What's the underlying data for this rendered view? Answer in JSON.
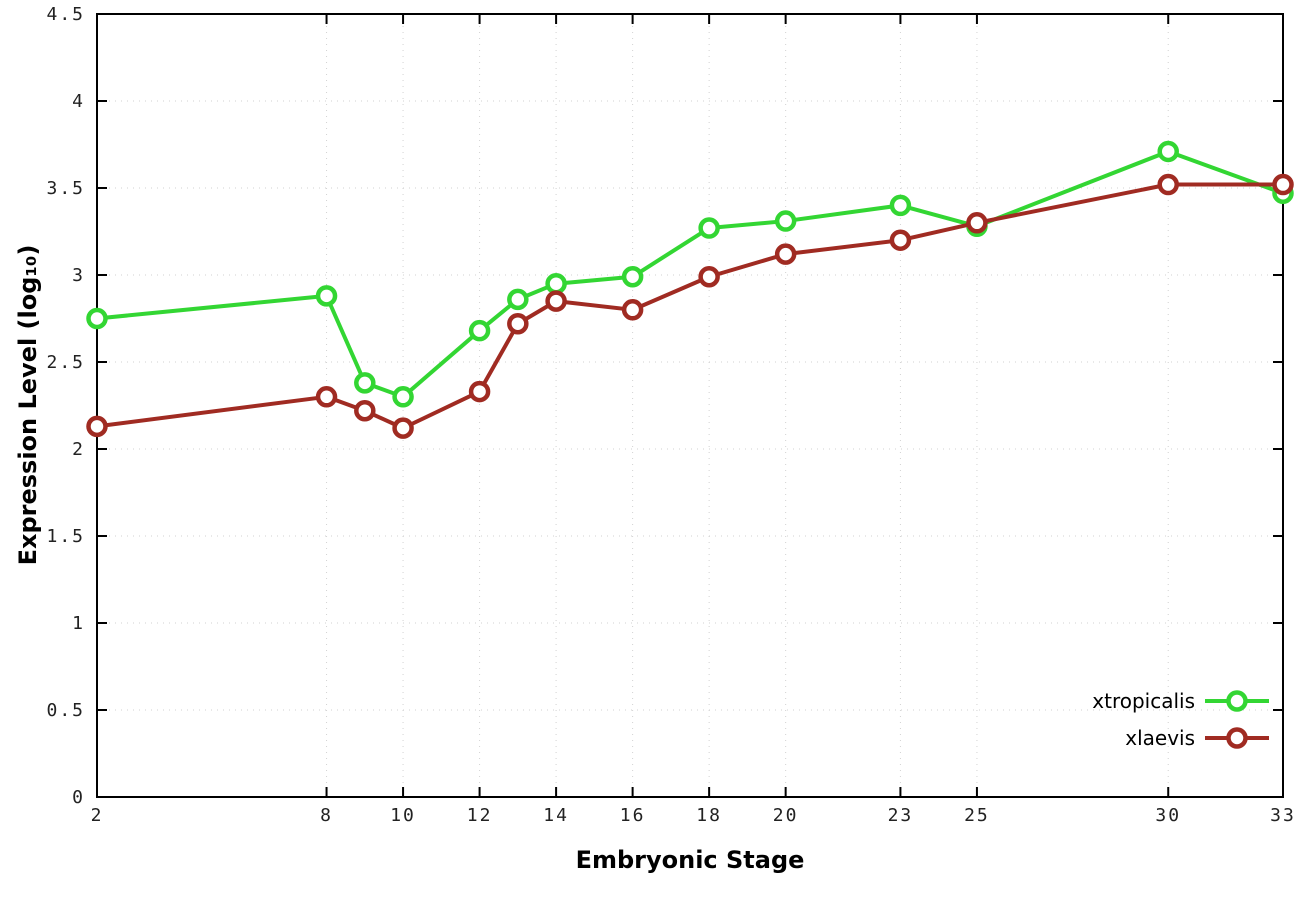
{
  "page": {
    "background": "#ffffff"
  },
  "chart_data": {
    "type": "line",
    "title": "",
    "xlabel": "Embryonic Stage",
    "ylabel": "Expression Level (log10)",
    "ylabel_display": "Expression Level (log₁₀)",
    "x": [
      2,
      8,
      9,
      10,
      12,
      13,
      14,
      16,
      18,
      20,
      23,
      25,
      30,
      33
    ],
    "series": [
      {
        "name": "xtropicalis",
        "color": "#33d633",
        "marker": "open-circle",
        "values": [
          2.75,
          2.88,
          2.38,
          2.3,
          2.68,
          2.86,
          2.95,
          2.99,
          3.27,
          3.31,
          3.4,
          3.28,
          3.71,
          3.47
        ]
      },
      {
        "name": "xlaevis",
        "color": "#a02b22",
        "marker": "open-circle",
        "values": [
          2.13,
          2.3,
          2.22,
          2.12,
          2.33,
          2.72,
          2.85,
          2.8,
          2.99,
          3.12,
          3.2,
          3.3,
          3.52,
          3.52
        ]
      }
    ],
    "xticks": [
      2,
      8,
      10,
      12,
      14,
      16,
      18,
      20,
      23,
      25,
      30,
      33
    ],
    "yticks": [
      0,
      0.5,
      1,
      1.5,
      2,
      2.5,
      3,
      3.5,
      4,
      4.5
    ],
    "xlim": [
      2,
      33
    ],
    "ylim": [
      0,
      4.5
    ],
    "grid": true,
    "legend_position": "bottom-right",
    "axis_color": "#000000",
    "grid_color": "#d2d2d2",
    "tick_label_color": "#222222"
  }
}
